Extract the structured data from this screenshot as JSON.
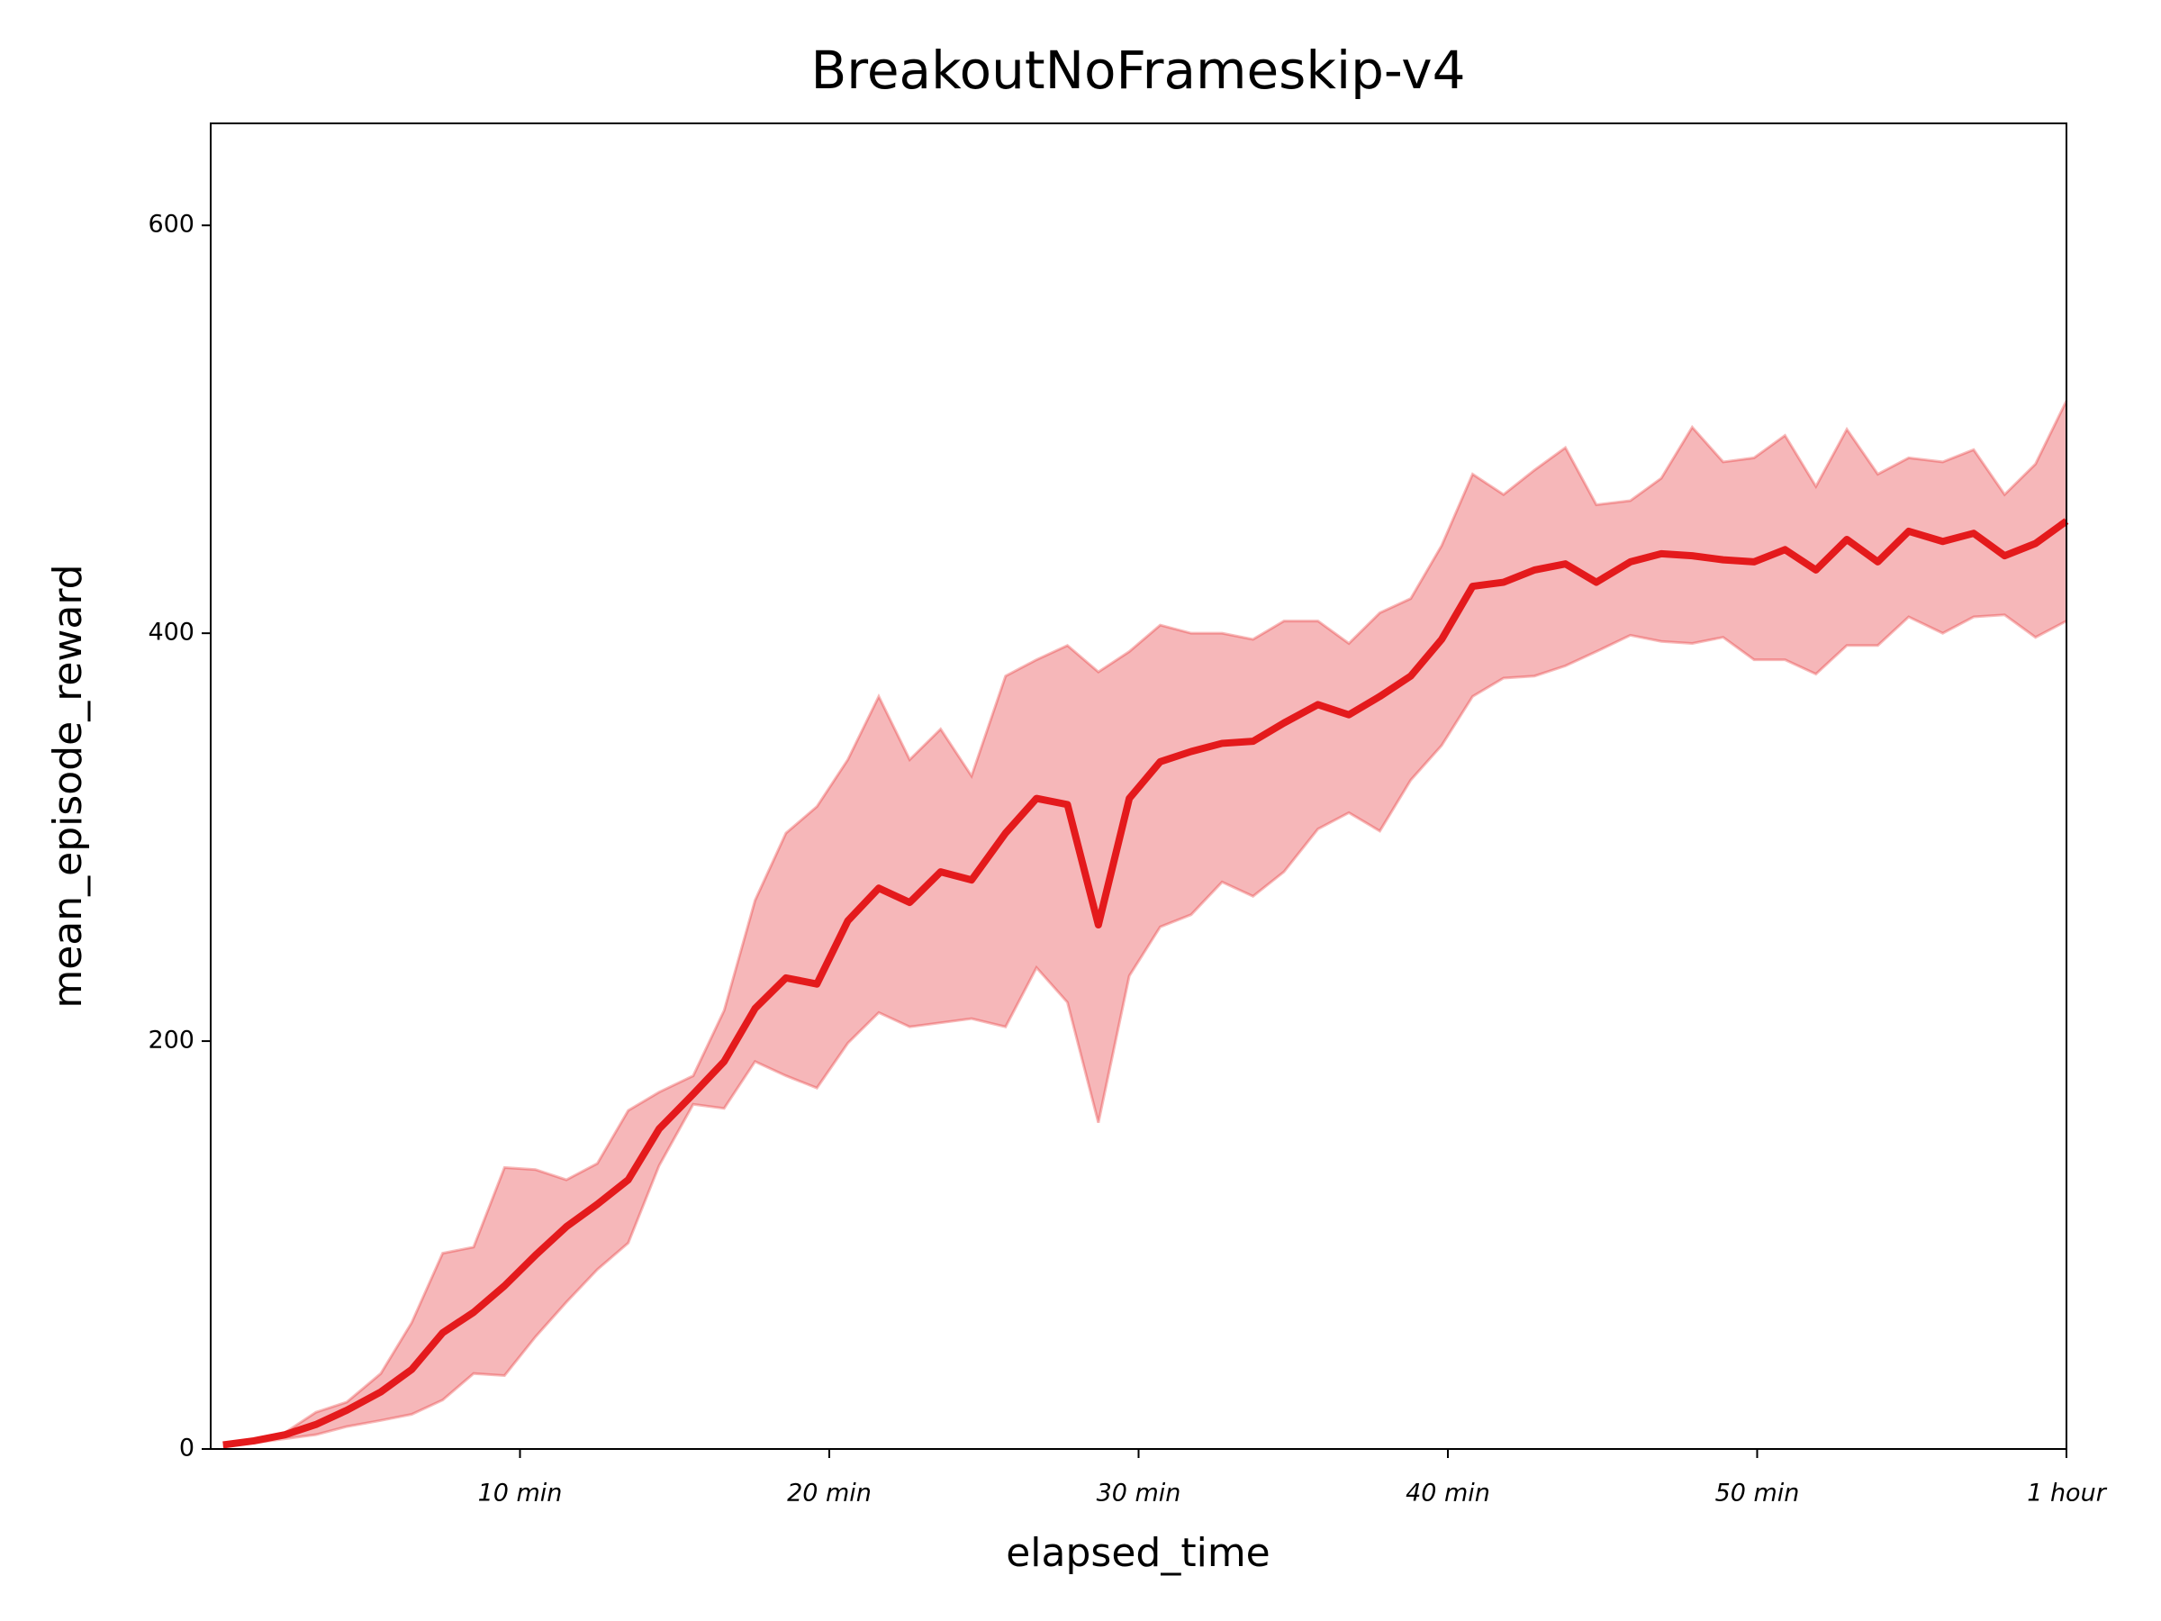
{
  "chart_data": {
    "type": "line",
    "title": "BreakoutNoFrameskip-v4",
    "x_label": "elapsed_time",
    "y_label": "mean_episode_reward",
    "color": "#e41a1c",
    "band_color": "#f4a5a7",
    "xlim": [
      0,
      60
    ],
    "ylim": [
      0,
      650
    ],
    "xticks": [
      {
        "value": 10,
        "label": "10 min"
      },
      {
        "value": 20,
        "label": "20 min"
      },
      {
        "value": 30,
        "label": "30 min"
      },
      {
        "value": 40,
        "label": "40 min"
      },
      {
        "value": 50,
        "label": "50 min"
      },
      {
        "value": 60,
        "label": "1 hour"
      }
    ],
    "yticks": [
      0,
      200,
      400,
      600
    ],
    "x": [
      0.4,
      1.4,
      2.4,
      3.4,
      4.4,
      5.5,
      6.5,
      7.5,
      8.5,
      9.5,
      10.5,
      11.5,
      12.5,
      13.5,
      14.5,
      15.6,
      16.6,
      17.6,
      18.6,
      19.6,
      20.6,
      21.6,
      22.6,
      23.6,
      24.6,
      25.7,
      26.7,
      27.7,
      28.7,
      29.7,
      30.7,
      31.7,
      32.7,
      33.7,
      34.7,
      35.8,
      36.8,
      37.8,
      38.8,
      39.8,
      40.8,
      41.8,
      42.8,
      43.8,
      44.8,
      45.9,
      46.9,
      47.9,
      48.9,
      49.9,
      50.9,
      51.9,
      52.9,
      53.9,
      54.9,
      56.0,
      57.0,
      58.0,
      59.0,
      60.0
    ],
    "values": [
      2,
      4,
      7,
      12,
      19,
      28,
      39,
      57,
      67,
      80,
      95,
      109,
      120,
      132,
      157,
      174,
      190,
      216,
      231,
      228,
      259,
      275,
      268,
      283,
      279,
      302,
      319,
      316,
      257,
      319,
      337,
      342,
      346,
      347,
      356,
      365,
      360,
      369,
      379,
      397,
      423,
      425,
      431,
      434,
      425,
      435,
      439,
      438,
      436,
      435,
      441,
      431,
      446,
      435,
      450,
      445,
      449,
      438,
      444,
      455
    ],
    "upper": [
      2,
      5,
      8,
      18,
      23,
      37,
      62,
      96,
      99,
      138,
      137,
      132,
      140,
      166,
      175,
      183,
      215,
      269,
      302,
      315,
      338,
      369,
      338,
      353,
      330,
      379,
      387,
      394,
      381,
      391,
      404,
      400,
      400,
      397,
      406,
      406,
      395,
      410,
      417,
      443,
      478,
      468,
      480,
      491,
      463,
      465,
      476,
      501,
      484,
      486,
      497,
      472,
      500,
      478,
      486,
      484,
      490,
      468,
      483,
      514
    ],
    "lower": [
      1,
      3,
      5,
      7,
      11,
      14,
      17,
      24,
      37,
      36,
      55,
      72,
      88,
      101,
      139,
      169,
      167,
      190,
      183,
      177,
      199,
      214,
      207,
      209,
      211,
      207,
      236,
      219,
      160,
      232,
      256,
      262,
      278,
      271,
      283,
      304,
      312,
      303,
      328,
      345,
      369,
      378,
      379,
      384,
      391,
      399,
      396,
      395,
      398,
      387,
      387,
      380,
      394,
      394,
      408,
      400,
      408,
      409,
      398,
      406
    ]
  }
}
